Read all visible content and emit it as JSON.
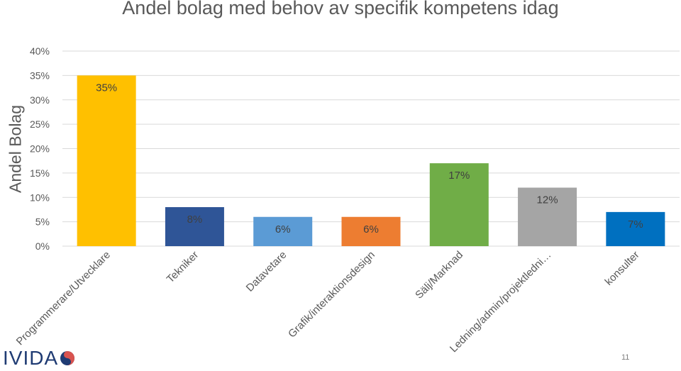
{
  "chart_data": {
    "type": "bar",
    "title": "Andel bolag med behov av specifik kompetens idag",
    "xlabel": "",
    "ylabel": "Andel Bolag",
    "ylim": [
      0,
      40
    ],
    "yticks": [
      "0%",
      "5%",
      "10%",
      "15%",
      "20%",
      "25%",
      "30%",
      "35%",
      "40%"
    ],
    "grid": true,
    "categories": [
      "Programmerare/Utvecklare",
      "Tekniker",
      "Datavetare",
      "Grafik/interaktionsdesign",
      "Sälj/Marknad",
      "Ledning/admin/projektledni…",
      "konsulter"
    ],
    "values": [
      35,
      8,
      6,
      6,
      17,
      12,
      7
    ],
    "value_labels": [
      "35%",
      "8%",
      "6%",
      "6%",
      "17%",
      "12%",
      "7%"
    ],
    "colors": [
      "#FFC000",
      "#2F5597",
      "#5B9BD5",
      "#ED7D31",
      "#70AD47",
      "#A5A5A5",
      "#0070C0"
    ]
  },
  "logo": {
    "text": "IVIDA"
  },
  "page_number": "11"
}
